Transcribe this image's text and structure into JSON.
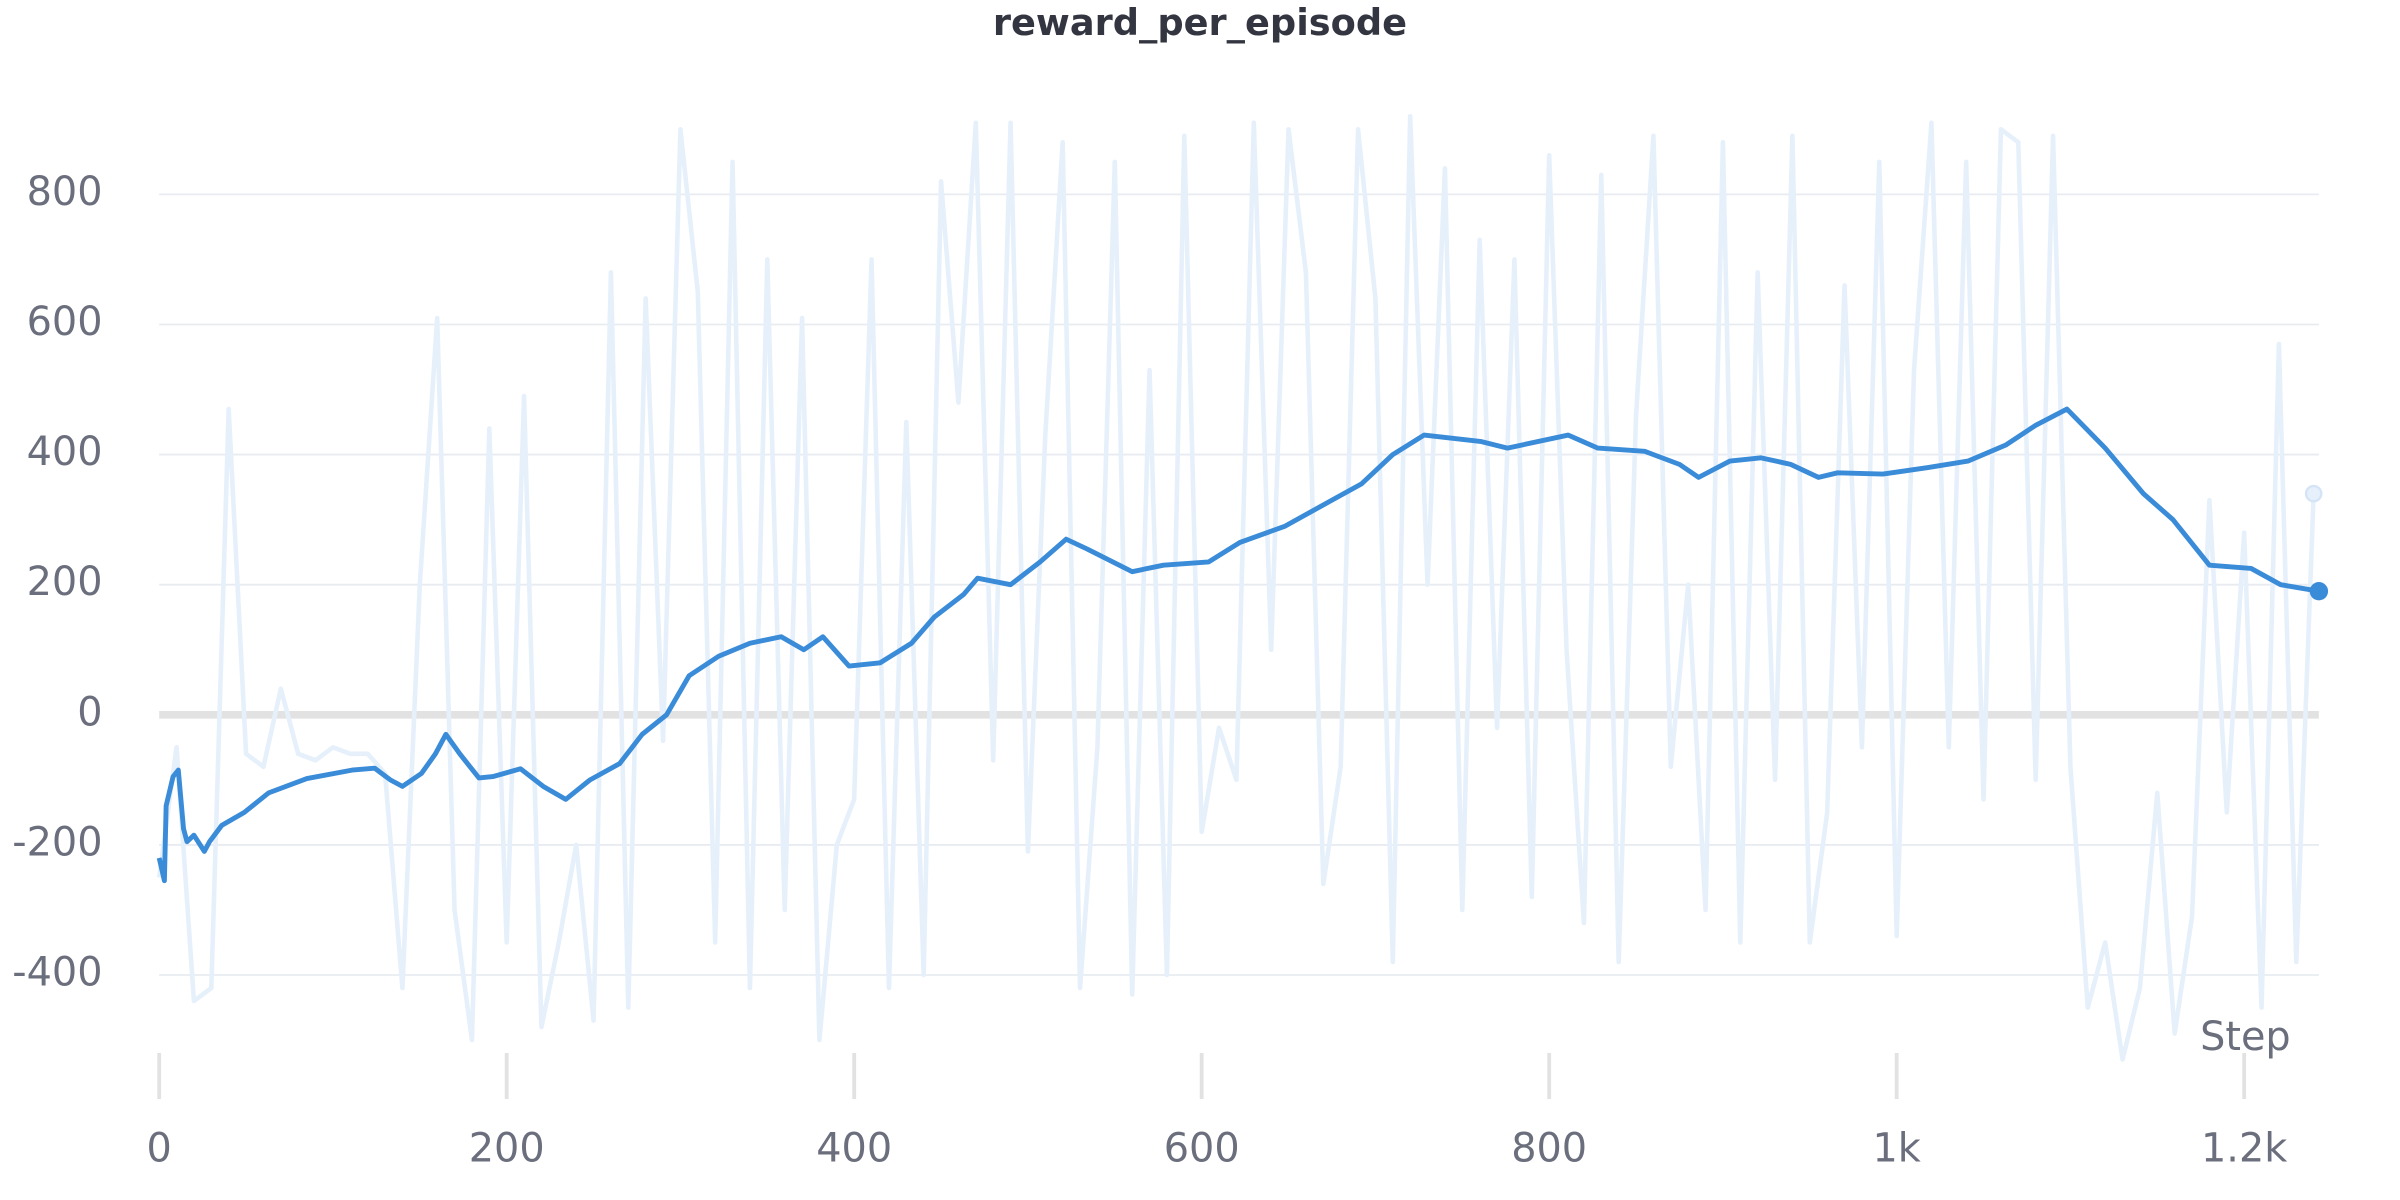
{
  "chart_data": {
    "type": "line",
    "title": "reward_per_episode",
    "x_label": "Step",
    "xlim": [
      0,
      1243
    ],
    "ylim": [
      -560,
      960
    ],
    "xticks": [
      0,
      200,
      400,
      600,
      800,
      {
        "value": 1000,
        "label": "1k"
      },
      {
        "value": 1200,
        "label": "1.2k"
      }
    ],
    "yticks": [
      -400,
      -200,
      0,
      200,
      400,
      600,
      800
    ],
    "grid": true,
    "series": [
      {
        "color": "#e6f0fb",
        "x": [
          0,
          10,
          20,
          30,
          40,
          50,
          60,
          70,
          80,
          90,
          100,
          110,
          120,
          130,
          140,
          150,
          160,
          170,
          180,
          190,
          200,
          210,
          220,
          230,
          240,
          250,
          260,
          270,
          280,
          290,
          300,
          310,
          320,
          330,
          340,
          350,
          360,
          370,
          380,
          390,
          400,
          410,
          420,
          430,
          440,
          450,
          460,
          470,
          480,
          490,
          500,
          510,
          520,
          530,
          540,
          550,
          560,
          570,
          580,
          590,
          600,
          610,
          620,
          630,
          640,
          650,
          660,
          670,
          680,
          690,
          700,
          710,
          720,
          730,
          740,
          750,
          760,
          770,
          780,
          790,
          800,
          810,
          820,
          830,
          840,
          850,
          860,
          870,
          880,
          890,
          900,
          910,
          920,
          930,
          940,
          950,
          960,
          970,
          980,
          990,
          1000,
          1010,
          1020,
          1030,
          1040,
          1050,
          1060,
          1070,
          1080,
          1090,
          1100,
          1110,
          1120,
          1130,
          1140,
          1150,
          1160,
          1170,
          1180,
          1190,
          1200,
          1210,
          1220,
          1230,
          1240
        ],
        "values": [
          -250,
          -50,
          -440,
          -420,
          470,
          -60,
          -80,
          40,
          -60,
          -70,
          -50,
          -60,
          -60,
          -90,
          -420,
          200,
          610,
          -300,
          -500,
          440,
          -350,
          490,
          -480,
          -350,
          -200,
          -470,
          680,
          -450,
          640,
          -40,
          900,
          650,
          -350,
          850,
          -420,
          700,
          -300,
          610,
          -500,
          -200,
          -130,
          700,
          -420,
          450,
          -400,
          820,
          480,
          910,
          -70,
          910,
          -210,
          430,
          880,
          -420,
          -50,
          850,
          -430,
          530,
          -400,
          890,
          -180,
          -20,
          -100,
          910,
          100,
          900,
          680,
          -260,
          -80,
          900,
          640,
          -380,
          920,
          200,
          840,
          -300,
          730,
          -20,
          700,
          -280,
          860,
          100,
          -320,
          830,
          -380,
          460,
          890,
          -80,
          200,
          -300,
          880,
          -350,
          680,
          -100,
          890,
          -350,
          -150,
          660,
          -50,
          850,
          -340,
          530,
          910,
          -50,
          850,
          -130,
          900,
          880,
          -100,
          890,
          -80,
          -450,
          -350,
          -530,
          -420,
          -120,
          -490,
          -310,
          330,
          -150,
          280,
          -450,
          570,
          -380,
          340
        ]
      },
      {
        "color": "#3a8bd8",
        "x": [
          0,
          3,
          4,
          8,
          11,
          14,
          16,
          20,
          26,
          29,
          36,
          49,
          63,
          85,
          111,
          124,
          133,
          140,
          151,
          159,
          165,
          173,
          184,
          192,
          208,
          221,
          234,
          248,
          265,
          278,
          292,
          305,
          322,
          340,
          358,
          371,
          382,
          397,
          415,
          433,
          446,
          463,
          471,
          490,
          507,
          522,
          534,
          560,
          578,
          604,
          622,
          648,
          675,
          692,
          710,
          728,
          761,
          776,
          811,
          828,
          855,
          875,
          886,
          904,
          922,
          939,
          955,
          966,
          992,
          1018,
          1041,
          1063,
          1080,
          1098,
          1120,
          1142,
          1159,
          1180,
          1204,
          1221,
          1243
        ],
        "values": [
          -220,
          -255,
          -140,
          -95,
          -85,
          -175,
          -195,
          -185,
          -210,
          -195,
          -170,
          -150,
          -120,
          -98,
          -85,
          -82,
          -100,
          -110,
          -90,
          -60,
          -30,
          -60,
          -97,
          -95,
          -83,
          -110,
          -130,
          -100,
          -75,
          -30,
          0,
          60,
          90,
          110,
          120,
          100,
          120,
          75,
          80,
          110,
          150,
          185,
          210,
          200,
          235,
          270,
          255,
          220,
          230,
          235,
          265,
          290,
          330,
          355,
          400,
          430,
          420,
          410,
          430,
          410,
          405,
          385,
          365,
          390,
          395,
          385,
          365,
          372,
          370,
          380,
          390,
          415,
          445,
          470,
          410,
          340,
          300,
          230,
          225,
          200,
          190
        ]
      }
    ]
  }
}
